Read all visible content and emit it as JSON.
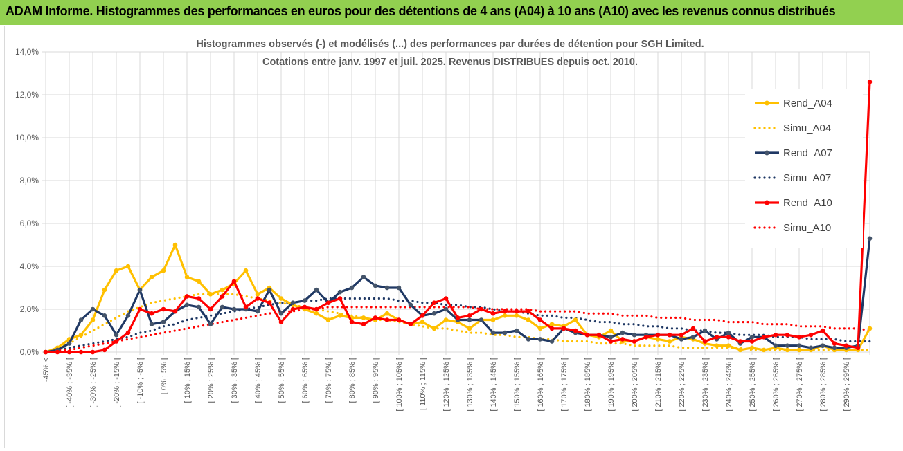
{
  "header": {
    "title": "ADAM Informe. Histogrammes des performances en euros pour des détentions de 4 ans (A04) à 10 ans (A10) avec les revenus connus distribués"
  },
  "colors": {
    "banner": "#92d050",
    "A04": "#ffc000",
    "A07": "#1f3864",
    "A10": "#ff0000",
    "grid": "#d9d9d9"
  },
  "chart_data": {
    "type": "line",
    "title": "Histogrammes observés (-) et modélisés (...) des performances par durées de détention pour SGH Limited.",
    "subtitle": "Cotations entre janv. 1997 et juil. 2025. Revenus DISTRIBUES depuis oct. 2010.",
    "xlabel": "",
    "ylabel": "",
    "ylim": [
      0,
      0.14
    ],
    "y_ticks": [
      "0,0%",
      "2,0%",
      "4,0%",
      "6,0%",
      "8,0%",
      "10,0%",
      "12,0%",
      "14,0%"
    ],
    "categories": [
      "-45% <",
      "[ -45% ; -40% [",
      "[ -40% ; -35% [",
      "[ -35% ; -30% [",
      "[ -30% ; -25% [",
      "[ -25% ; -20% [",
      "[ -20% ; -15% [",
      "[ -15% ; -10% [",
      "[ -10% ; -5% [",
      "[ -5% ; 0% [",
      "[ 0% ; 5% [",
      "[ 5% ; 10% [",
      "[ 10% ; 15% [",
      "[ 15% ; 20% [",
      "[ 20% ; 25% [",
      "[ 25% ; 30% [",
      "[ 30% ; 35% [",
      "[ 35% ; 40% [",
      "[ 40% ; 45% [",
      "[ 45% ; 50% [",
      "[ 50% ; 55% [",
      "[ 55% ; 60% [",
      "[ 60% ; 65% [",
      "[ 65% ; 70% [",
      "[ 70% ; 75% [",
      "[ 75% ; 80% [",
      "[ 80% ; 85% [",
      "[ 85% ; 90% [",
      "[ 90% ; 95% [",
      "[ 95% ; 100% [",
      "[ 100% ; 105% [",
      "[ 105% ; 110% [",
      "[ 110% ; 115% [",
      "[ 115% ; 120% [",
      "[ 120% ; 125% [",
      "[ 125% ; 130% [",
      "[ 130% ; 135% [",
      "[ 135% ; 140% [",
      "[ 140% ; 145% [",
      "[ 145% ; 150% [",
      "[ 150% ; 155% [",
      "[ 155% ; 160% [",
      "[ 160% ; 165% [",
      "[ 165% ; 170% [",
      "[ 170% ; 175% [",
      "[ 175% ; 180% [",
      "[ 180% ; 185% [",
      "[ 185% ; 190% [",
      "[ 190% ; 195% [",
      "[ 195% ; 200% [",
      "[ 200% ; 205% [",
      "[ 205% ; 210% [",
      "[ 210% ; 215% [",
      "[ 215% ; 220% [",
      "[ 220% ; 225% [",
      "[ 225% ; 230% [",
      "[ 230% ; 235% [",
      "[ 235% ; 240% [",
      "[ 240% ; 245% [",
      "[ 245% ; 250% [",
      "[ 250% ; 255% [",
      "[ 255% ; 260% [",
      "[ 260% ; 265% [",
      "[ 265% ; 270% [",
      "[ 270% ; 275% [",
      "[ 275% ; 280% [",
      "[ 280% ; 285% [",
      "[ 285% ; 290% [",
      "[ 290% ; 295% [",
      "[ 295% ; 300% [",
      "> 300%"
    ],
    "visible_tick_labels": [
      "-45% <",
      "[ -40% ; -35% [",
      "[ -30% ; -25% [",
      "[ -20% ; -15% [",
      "[ -10% ; -5% [",
      "[ 0% ; 5% [",
      "[ 10% ; 15% [",
      "[ 20% ; 25% [",
      "[ 30% ; 35% [",
      "[ 40% ; 45% [",
      "[ 50% ; 55% [",
      "[ 60% ; 65% [",
      "[ 70% ; 75% [",
      "[ 80% ; 85% [",
      "[ 90% ; 95% [",
      "[ 100% ; 105% [",
      "[ 110% ; 115% [",
      "[ 120% ; 125% [",
      "[ 130% ; 135% [",
      "[ 140% ; 145% [",
      "[ 150% ; 155% [",
      "[ 160% ; 165% [",
      "[ 170% ; 175% [",
      "[ 180% ; 185% [",
      "[ 190% ; 195% [",
      "[ 200% ; 205% [",
      "[ 210% ; 215% [",
      "[ 220% ; 225% [",
      "[ 230% ; 235% [",
      "[ 240% ; 245% [",
      "[ 250% ; 255% [",
      "[ 260% ; 265% [",
      "[ 270% ; 275% [",
      "[ 280% ; 285% [",
      "[ 290% ; 295% ["
    ],
    "legend_position": "right",
    "grid": true,
    "series": [
      {
        "name": "Rend_A04",
        "style": "solid",
        "color": "#ffc000",
        "values": [
          0.0,
          0.002,
          0.006,
          0.008,
          0.015,
          0.029,
          0.038,
          0.04,
          0.029,
          0.035,
          0.038,
          0.05,
          0.035,
          0.033,
          0.027,
          0.029,
          0.032,
          0.038,
          0.027,
          0.03,
          0.025,
          0.022,
          0.02,
          0.018,
          0.015,
          0.017,
          0.016,
          0.016,
          0.015,
          0.018,
          0.015,
          0.013,
          0.014,
          0.011,
          0.015,
          0.014,
          0.011,
          0.015,
          0.015,
          0.017,
          0.017,
          0.015,
          0.011,
          0.013,
          0.012,
          0.015,
          0.008,
          0.007,
          0.01,
          0.005,
          0.005,
          0.007,
          0.006,
          0.005,
          0.007,
          0.006,
          0.004,
          0.003,
          0.003,
          0.001,
          0.002,
          0.001,
          0.002,
          0.001,
          0.001,
          0.001,
          0.003,
          0.001,
          0.001,
          0.001,
          0.011
        ]
      },
      {
        "name": "Simu_A04",
        "style": "dotted",
        "color": "#ffc000",
        "values": [
          0.0,
          0.002,
          0.004,
          0.007,
          0.01,
          0.013,
          0.016,
          0.019,
          0.021,
          0.023,
          0.024,
          0.025,
          0.026,
          0.027,
          0.027,
          0.027,
          0.027,
          0.026,
          0.025,
          0.024,
          0.023,
          0.022,
          0.021,
          0.02,
          0.019,
          0.018,
          0.017,
          0.016,
          0.015,
          0.015,
          0.014,
          0.013,
          0.012,
          0.011,
          0.011,
          0.01,
          0.009,
          0.009,
          0.008,
          0.008,
          0.007,
          0.007,
          0.006,
          0.006,
          0.005,
          0.005,
          0.005,
          0.004,
          0.004,
          0.004,
          0.003,
          0.003,
          0.003,
          0.003,
          0.002,
          0.002,
          0.002,
          0.002,
          0.002,
          0.002,
          0.001,
          0.001,
          0.001,
          0.001,
          0.001,
          0.001,
          0.001,
          0.001,
          0.001,
          0.001,
          0.001
        ]
      },
      {
        "name": "Rend_A07",
        "style": "solid",
        "color": "#1f3864",
        "values": [
          0.0,
          0.001,
          0.004,
          0.015,
          0.02,
          0.017,
          0.008,
          0.017,
          0.029,
          0.013,
          0.014,
          0.019,
          0.022,
          0.021,
          0.013,
          0.021,
          0.02,
          0.02,
          0.019,
          0.029,
          0.018,
          0.023,
          0.024,
          0.029,
          0.023,
          0.028,
          0.03,
          0.035,
          0.031,
          0.03,
          0.03,
          0.022,
          0.017,
          0.018,
          0.02,
          0.015,
          0.015,
          0.015,
          0.009,
          0.009,
          0.01,
          0.006,
          0.006,
          0.005,
          0.011,
          0.009,
          0.008,
          0.008,
          0.007,
          0.009,
          0.008,
          0.008,
          0.008,
          0.008,
          0.006,
          0.007,
          0.01,
          0.006,
          0.009,
          0.004,
          0.007,
          0.007,
          0.003,
          0.003,
          0.003,
          0.002,
          0.003,
          0.002,
          0.002,
          0.003,
          0.053
        ]
      },
      {
        "name": "Simu_A07",
        "style": "dotted",
        "color": "#1f3864",
        "values": [
          0.0,
          0.001,
          0.002,
          0.003,
          0.004,
          0.005,
          0.006,
          0.007,
          0.009,
          0.01,
          0.012,
          0.013,
          0.015,
          0.016,
          0.017,
          0.018,
          0.019,
          0.02,
          0.021,
          0.022,
          0.023,
          0.023,
          0.024,
          0.024,
          0.025,
          0.025,
          0.025,
          0.025,
          0.025,
          0.025,
          0.024,
          0.024,
          0.023,
          0.023,
          0.022,
          0.022,
          0.021,
          0.021,
          0.02,
          0.019,
          0.019,
          0.018,
          0.017,
          0.017,
          0.016,
          0.016,
          0.015,
          0.014,
          0.014,
          0.013,
          0.013,
          0.012,
          0.012,
          0.011,
          0.011,
          0.01,
          0.01,
          0.009,
          0.009,
          0.008,
          0.008,
          0.008,
          0.007,
          0.007,
          0.007,
          0.006,
          0.006,
          0.006,
          0.005,
          0.005,
          0.005
        ]
      },
      {
        "name": "Rend_A10",
        "style": "solid",
        "color": "#ff0000",
        "values": [
          0.0,
          0.0,
          0.0,
          0.0,
          0.0,
          0.001,
          0.005,
          0.009,
          0.02,
          0.018,
          0.02,
          0.019,
          0.026,
          0.025,
          0.02,
          0.026,
          0.033,
          0.021,
          0.025,
          0.023,
          0.014,
          0.02,
          0.021,
          0.02,
          0.023,
          0.025,
          0.014,
          0.013,
          0.016,
          0.015,
          0.015,
          0.013,
          0.017,
          0.023,
          0.025,
          0.016,
          0.017,
          0.02,
          0.018,
          0.019,
          0.019,
          0.019,
          0.015,
          0.011,
          0.011,
          0.01,
          0.008,
          0.008,
          0.005,
          0.006,
          0.005,
          0.007,
          0.008,
          0.008,
          0.008,
          0.011,
          0.005,
          0.007,
          0.007,
          0.005,
          0.005,
          0.007,
          0.008,
          0.008,
          0.007,
          0.008,
          0.01,
          0.004,
          0.003,
          0.002,
          0.126
        ]
      },
      {
        "name": "Simu_A10",
        "style": "dotted",
        "color": "#ff0000",
        "values": [
          0.0,
          0.001,
          0.001,
          0.002,
          0.003,
          0.004,
          0.005,
          0.006,
          0.007,
          0.008,
          0.009,
          0.01,
          0.011,
          0.012,
          0.013,
          0.014,
          0.015,
          0.016,
          0.017,
          0.018,
          0.019,
          0.019,
          0.02,
          0.02,
          0.021,
          0.021,
          0.021,
          0.021,
          0.021,
          0.021,
          0.021,
          0.021,
          0.021,
          0.021,
          0.021,
          0.021,
          0.021,
          0.02,
          0.02,
          0.02,
          0.02,
          0.02,
          0.019,
          0.019,
          0.019,
          0.019,
          0.018,
          0.018,
          0.018,
          0.017,
          0.017,
          0.017,
          0.016,
          0.016,
          0.016,
          0.015,
          0.015,
          0.015,
          0.014,
          0.014,
          0.014,
          0.013,
          0.013,
          0.013,
          0.012,
          0.012,
          0.012,
          0.011,
          0.011,
          0.011,
          0.01
        ]
      }
    ]
  }
}
